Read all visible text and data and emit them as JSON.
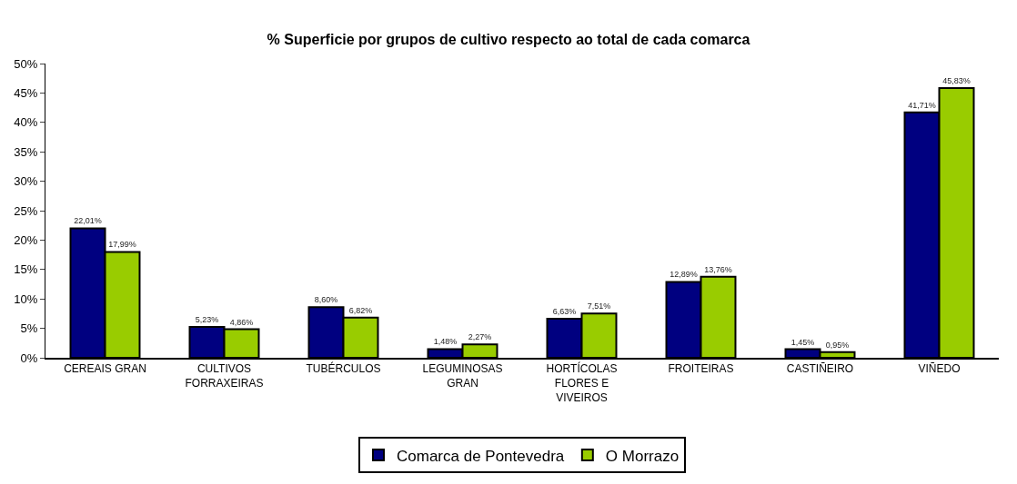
{
  "chart_data": {
    "type": "bar",
    "title": "% Superficie por grupos de cultivo respecto ao total de cada comarca",
    "categories": [
      "CEREAIS GRAN",
      "CULTIVOS FORRAXEIRAS",
      "TUBÉRCULOS",
      "LEGUMINOSAS GRAN",
      "HORTÍCOLAS FLORES E VIVEIROS",
      "FROITEIRAS",
      "CASTIÑEIRO",
      "VIÑEDO"
    ],
    "series": [
      {
        "name": "Comarca de Pontevedra",
        "color": "#000080",
        "values": [
          22.01,
          5.23,
          8.6,
          1.48,
          6.63,
          12.89,
          1.45,
          41.71
        ],
        "value_labels": [
          "22,01%",
          "5,23%",
          "8,60%",
          "1,48%",
          "6,63%",
          "12,89%",
          "1,45%",
          "41,71%"
        ]
      },
      {
        "name": "O Morrazo",
        "color": "#99cc00",
        "values": [
          17.99,
          4.86,
          6.82,
          2.27,
          7.51,
          13.76,
          0.95,
          45.83
        ],
        "value_labels": [
          "17,99%",
          "4,86%",
          "6,82%",
          "2,27%",
          "7,51%",
          "13,76%",
          "0,95%",
          "45,83%"
        ]
      }
    ],
    "ylim": [
      0,
      50
    ],
    "yticks": [
      {
        "value": 0,
        "label": "0%"
      },
      {
        "value": 5,
        "label": "5%"
      },
      {
        "value": 10,
        "label": "10%"
      },
      {
        "value": 15,
        "label": "15%"
      },
      {
        "value": 20,
        "label": "20%"
      },
      {
        "value": 25,
        "label": "25%"
      },
      {
        "value": 30,
        "label": "30%"
      },
      {
        "value": 35,
        "label": "35%"
      },
      {
        "value": 40,
        "label": "40%"
      },
      {
        "value": 45,
        "label": "45%"
      },
      {
        "value": 50,
        "label": "50%"
      }
    ],
    "legend": "bottom"
  }
}
